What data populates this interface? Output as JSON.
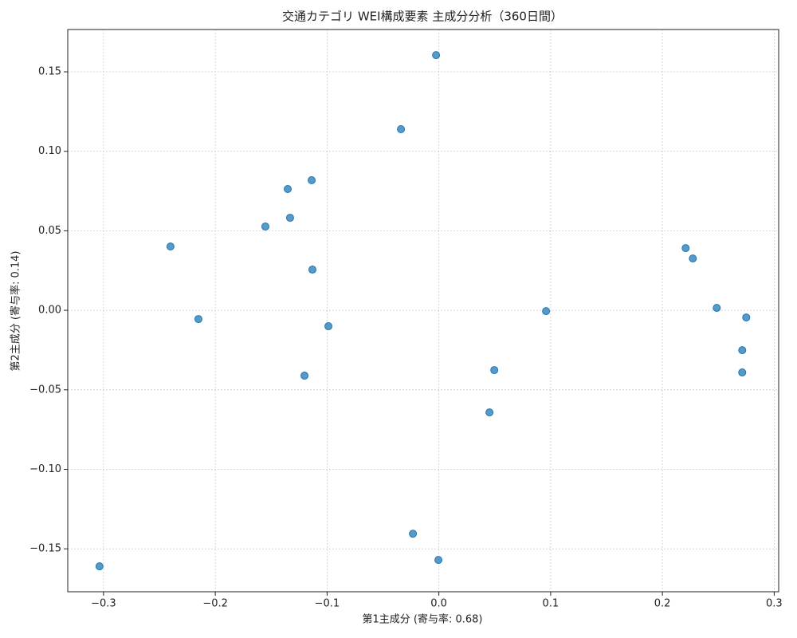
{
  "chart_data": {
    "type": "scatter",
    "title": "交通カテゴリ WEI構成要素 主成分分析（360日間）",
    "x_label": "第1主成分 (寄与率: 0.68)",
    "y_label": "第2主成分 (寄与率: 0.14)",
    "color": "#1f77b4",
    "grid": true,
    "x": [
      -0.0025,
      -0.0339,
      -0.1138,
      -0.1352,
      -0.1331,
      -0.1552,
      -0.2401,
      -0.1131,
      -0.2151,
      -0.0988,
      -0.1202,
      0.0959,
      0.0496,
      0.0453,
      -0.0232,
      -0.0004,
      -0.3036,
      0.2208,
      0.2272,
      0.2486,
      0.275,
      0.2714,
      0.2714
    ],
    "values": [
      0.1605,
      0.1139,
      0.0818,
      0.0763,
      0.0582,
      0.0527,
      0.0401,
      0.0256,
      -0.0055,
      -0.01,
      -0.0411,
      -0.0005,
      -0.0376,
      -0.0642,
      -0.1405,
      -0.157,
      -0.161,
      0.0391,
      0.0326,
      0.0015,
      -0.0045,
      -0.0251,
      -0.0391
    ],
    "xlim": [
      -0.332,
      0.304
    ],
    "ylim": [
      -0.177,
      0.1766
    ],
    "xticks": [
      {
        "value": -0.3,
        "label": "−0.3"
      },
      {
        "value": -0.2,
        "label": "−0.2"
      },
      {
        "value": -0.1,
        "label": "−0.1"
      },
      {
        "value": 0,
        "label": "0.0"
      },
      0.1,
      0.2,
      0.3
    ],
    "yticks": [
      {
        "value": -0.15,
        "label": "−0.15"
      },
      {
        "value": -0.1,
        "label": "−0.10"
      },
      {
        "value": -0.05,
        "label": "−0.05"
      },
      {
        "value": 0,
        "label": "0.00"
      },
      0.05,
      {
        "value": 0.1,
        "label": "0.10"
      },
      0.15
    ]
  }
}
